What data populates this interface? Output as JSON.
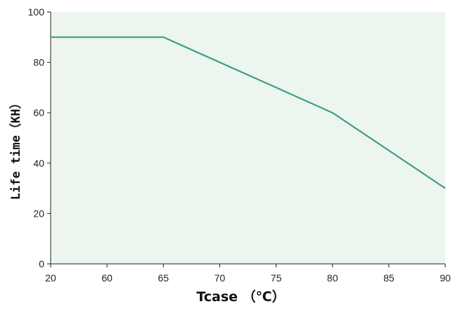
{
  "chart_data": {
    "type": "line",
    "title": "",
    "xlabel": "Tcase （℃）",
    "ylabel": "Life time（KH）",
    "x_tick_labels": [
      "20",
      "60",
      "65",
      "70",
      "75",
      "80",
      "85",
      "90"
    ],
    "y_ticks": [
      0,
      20,
      40,
      60,
      80,
      100
    ],
    "ylim": [
      0,
      100
    ],
    "grid": false,
    "legend": "none",
    "series": [
      {
        "x": [
          "20",
          "65",
          "80",
          "90"
        ],
        "y": [
          90,
          90,
          60,
          30
        ]
      }
    ],
    "colors": {
      "plot_background": "#edf5ef",
      "line": "#3f9e8a",
      "axis": "#222222",
      "text": "#111111"
    }
  }
}
